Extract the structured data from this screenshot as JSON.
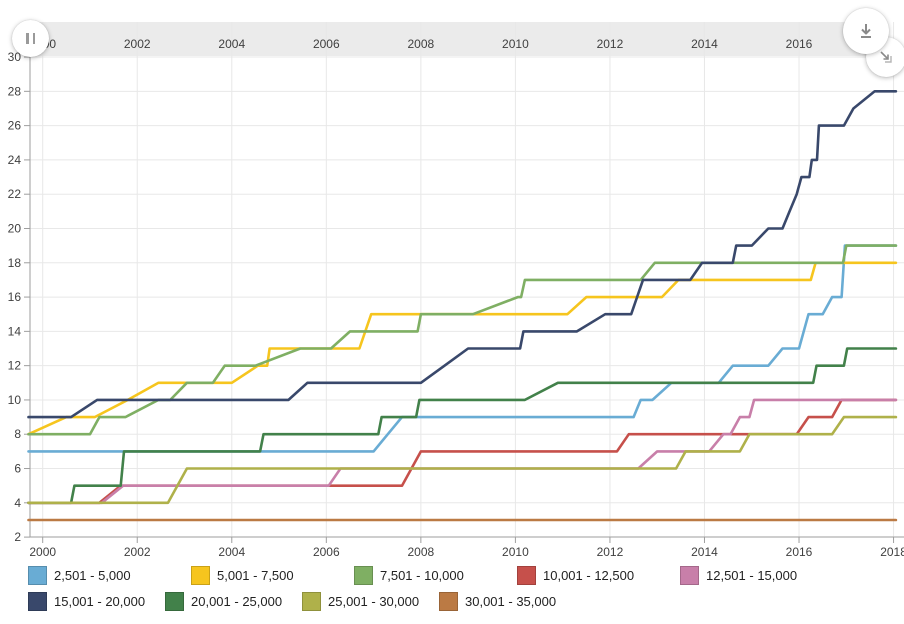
{
  "controls": {
    "pause_icon": "pause",
    "download_icon": "download",
    "expand_icon": "expand-corner"
  },
  "chart_data": {
    "type": "line",
    "title": "",
    "xlabel": "",
    "ylabel": "",
    "grid": true,
    "legend_position": "bottom",
    "x_axis": {
      "range": [
        1999.7,
        2018.2
      ],
      "ticks": [
        2000,
        2002,
        2004,
        2006,
        2008,
        2010,
        2012,
        2014,
        2016,
        2018
      ],
      "tick_labels": [
        "2000",
        "2002",
        "2004",
        "2006",
        "2008",
        "2010",
        "2012",
        "2014",
        "2016",
        "2018"
      ],
      "top_band_ticks": [
        2000,
        2002,
        2004,
        2006,
        2008,
        2010,
        2012,
        2014,
        2016
      ],
      "top_band_labels": [
        "2000",
        "2002",
        "2004",
        "2006",
        "2008",
        "2010",
        "2012",
        "2014",
        "2016"
      ]
    },
    "y_axis": {
      "range": [
        2,
        30
      ],
      "ticks": [
        2,
        4,
        6,
        8,
        10,
        12,
        14,
        16,
        18,
        20,
        22,
        24,
        26,
        28,
        30
      ],
      "tick_labels": [
        "2",
        "4",
        "6",
        "8",
        "10",
        "12",
        "14",
        "16",
        "18",
        "20",
        "22",
        "24",
        "26",
        "28",
        "30"
      ]
    },
    "colors": {
      "grid": "#e8e8e8",
      "axis": "#9e9e9e",
      "tick_text": "#404040",
      "top_band_bg": "#ebebeb"
    },
    "series": [
      {
        "name": "2,501 - 5,000",
        "color": "#69ACD4",
        "points": [
          [
            1999.7,
            7
          ],
          [
            2007.0,
            7
          ],
          [
            2007.3,
            8
          ],
          [
            2007.6,
            9
          ],
          [
            2012.5,
            9
          ],
          [
            2012.65,
            10
          ],
          [
            2012.9,
            10
          ],
          [
            2013.3,
            11
          ],
          [
            2014.3,
            11
          ],
          [
            2014.6,
            12
          ],
          [
            2015.35,
            12
          ],
          [
            2015.65,
            13
          ],
          [
            2016.0,
            13
          ],
          [
            2016.2,
            15
          ],
          [
            2016.5,
            15
          ],
          [
            2016.7,
            16
          ],
          [
            2016.9,
            16
          ],
          [
            2016.97,
            19
          ],
          [
            2018.05,
            19
          ]
        ]
      },
      {
        "name": "5,001 - 7,500",
        "color": "#F6C51E",
        "points": [
          [
            1999.7,
            8
          ],
          [
            2000.5,
            9
          ],
          [
            2001.1,
            9
          ],
          [
            2001.8,
            10
          ],
          [
            2002.45,
            11
          ],
          [
            2004.0,
            11
          ],
          [
            2004.55,
            12
          ],
          [
            2004.75,
            12
          ],
          [
            2004.8,
            13
          ],
          [
            2006.7,
            13
          ],
          [
            2006.95,
            15
          ],
          [
            2011.1,
            15
          ],
          [
            2011.5,
            16
          ],
          [
            2013.1,
            16
          ],
          [
            2013.45,
            17
          ],
          [
            2016.25,
            17
          ],
          [
            2016.35,
            18
          ],
          [
            2018.05,
            18
          ]
        ]
      },
      {
        "name": "7,501 - 10,000",
        "color": "#7FAF63",
        "points": [
          [
            1999.7,
            8
          ],
          [
            2001.0,
            8
          ],
          [
            2001.2,
            9
          ],
          [
            2001.75,
            9
          ],
          [
            2002.45,
            10
          ],
          [
            2002.7,
            10
          ],
          [
            2003.05,
            11
          ],
          [
            2003.6,
            11
          ],
          [
            2003.85,
            12
          ],
          [
            2004.5,
            12
          ],
          [
            2005.45,
            13
          ],
          [
            2006.1,
            13
          ],
          [
            2006.5,
            14
          ],
          [
            2007.93,
            14
          ],
          [
            2008.0,
            15
          ],
          [
            2009.1,
            15
          ],
          [
            2010.05,
            16
          ],
          [
            2010.12,
            16
          ],
          [
            2010.2,
            17
          ],
          [
            2012.65,
            17
          ],
          [
            2012.95,
            18
          ],
          [
            2016.93,
            18
          ],
          [
            2017.0,
            19
          ],
          [
            2018.05,
            19
          ]
        ]
      },
      {
        "name": "10,001 - 12,500",
        "color": "#C6504B",
        "points": [
          [
            1999.7,
            4
          ],
          [
            2001.2,
            4
          ],
          [
            2001.65,
            5
          ],
          [
            2007.6,
            5
          ],
          [
            2008.0,
            7
          ],
          [
            2012.15,
            7
          ],
          [
            2012.4,
            8
          ],
          [
            2015.95,
            8
          ],
          [
            2016.2,
            9
          ],
          [
            2016.7,
            9
          ],
          [
            2016.9,
            10
          ],
          [
            2018.05,
            10
          ]
        ]
      },
      {
        "name": "12,501 - 15,000",
        "color": "#C87FA9",
        "points": [
          [
            1999.7,
            4
          ],
          [
            2001.25,
            4
          ],
          [
            2001.7,
            5
          ],
          [
            2006.05,
            5
          ],
          [
            2006.3,
            6
          ],
          [
            2012.6,
            6
          ],
          [
            2013.0,
            7
          ],
          [
            2014.1,
            7
          ],
          [
            2014.4,
            8
          ],
          [
            2014.55,
            8
          ],
          [
            2014.75,
            9
          ],
          [
            2014.95,
            9
          ],
          [
            2015.05,
            10
          ],
          [
            2018.05,
            10
          ]
        ]
      },
      {
        "name": "15,001 - 20,000",
        "color": "#39486B",
        "points": [
          [
            1999.7,
            9
          ],
          [
            2000.6,
            9
          ],
          [
            2001.15,
            10
          ],
          [
            2005.2,
            10
          ],
          [
            2005.6,
            11
          ],
          [
            2008.0,
            11
          ],
          [
            2008.5,
            12
          ],
          [
            2009.0,
            13
          ],
          [
            2010.1,
            13
          ],
          [
            2010.17,
            14
          ],
          [
            2011.3,
            14
          ],
          [
            2011.9,
            15
          ],
          [
            2012.45,
            15
          ],
          [
            2012.7,
            17
          ],
          [
            2013.7,
            17
          ],
          [
            2013.95,
            18
          ],
          [
            2014.6,
            18
          ],
          [
            2014.67,
            19
          ],
          [
            2015.0,
            19
          ],
          [
            2015.35,
            20
          ],
          [
            2015.65,
            20
          ],
          [
            2015.8,
            21
          ],
          [
            2015.95,
            22
          ],
          [
            2016.05,
            23
          ],
          [
            2016.22,
            23
          ],
          [
            2016.27,
            24
          ],
          [
            2016.38,
            24
          ],
          [
            2016.42,
            26
          ],
          [
            2016.95,
            26
          ],
          [
            2017.15,
            27
          ],
          [
            2017.6,
            28
          ],
          [
            2018.05,
            28
          ]
        ]
      },
      {
        "name": "20,001 - 25,000",
        "color": "#42814A",
        "points": [
          [
            1999.7,
            4
          ],
          [
            2000.6,
            4
          ],
          [
            2000.67,
            5
          ],
          [
            2001.65,
            5
          ],
          [
            2001.72,
            7
          ],
          [
            2004.6,
            7
          ],
          [
            2004.67,
            8
          ],
          [
            2007.1,
            8
          ],
          [
            2007.17,
            9
          ],
          [
            2007.9,
            9
          ],
          [
            2007.97,
            10
          ],
          [
            2010.2,
            10
          ],
          [
            2010.9,
            11
          ],
          [
            2016.3,
            11
          ],
          [
            2016.37,
            12
          ],
          [
            2016.95,
            12
          ],
          [
            2017.02,
            13
          ],
          [
            2018.05,
            13
          ]
        ]
      },
      {
        "name": "25,001 - 30,000",
        "color": "#AFB14A",
        "points": [
          [
            1999.7,
            4
          ],
          [
            2002.65,
            4
          ],
          [
            2003.05,
            6
          ],
          [
            2013.4,
            6
          ],
          [
            2013.6,
            7
          ],
          [
            2014.75,
            7
          ],
          [
            2014.95,
            8
          ],
          [
            2016.7,
            8
          ],
          [
            2016.95,
            9
          ],
          [
            2018.05,
            9
          ]
        ]
      },
      {
        "name": "30,001 - 35,000",
        "color": "#BB7A44",
        "points": [
          [
            1999.7,
            3
          ],
          [
            2018.05,
            3
          ]
        ]
      }
    ],
    "legend_rows": [
      5,
      4
    ]
  }
}
